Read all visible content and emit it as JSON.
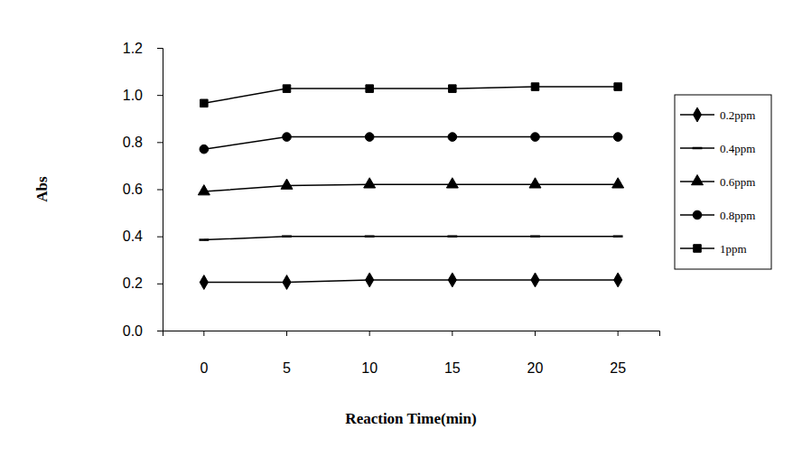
{
  "chart_data": {
    "type": "line",
    "x_label": "Reaction Time(min)",
    "y_label": "Abs",
    "categories": [
      "0",
      "5",
      "10",
      "15",
      "20",
      "25"
    ],
    "series": [
      {
        "name": "0.2ppm",
        "color": "#000000",
        "marker": "diamond",
        "values": [
          0.205,
          0.205,
          0.215,
          0.215,
          0.215,
          0.215
        ]
      },
      {
        "name": "0.4ppm",
        "color": "#000000",
        "marker": "dash",
        "values": [
          0.385,
          0.4,
          0.4,
          0.4,
          0.4,
          0.4
        ]
      },
      {
        "name": "0.6ppm",
        "color": "#000000",
        "marker": "triangle",
        "values": [
          0.59,
          0.615,
          0.62,
          0.62,
          0.62,
          0.62
        ]
      },
      {
        "name": "0.8ppm",
        "color": "#000000",
        "marker": "circle",
        "values": [
          0.77,
          0.822,
          0.822,
          0.822,
          0.822,
          0.822
        ]
      },
      {
        "name": "1ppm",
        "color": "#000000",
        "marker": "square",
        "values": [
          0.965,
          1.027,
          1.027,
          1.027,
          1.035,
          1.035
        ]
      }
    ],
    "ylim": [
      0,
      1.2
    ],
    "yticks": [
      {
        "value": 0,
        "label": "0.0"
      },
      0.2,
      0.4,
      0.6,
      0.8,
      {
        "value": 1.0,
        "label": "1.0"
      },
      1.2
    ],
    "grid": false,
    "legend": "right"
  }
}
